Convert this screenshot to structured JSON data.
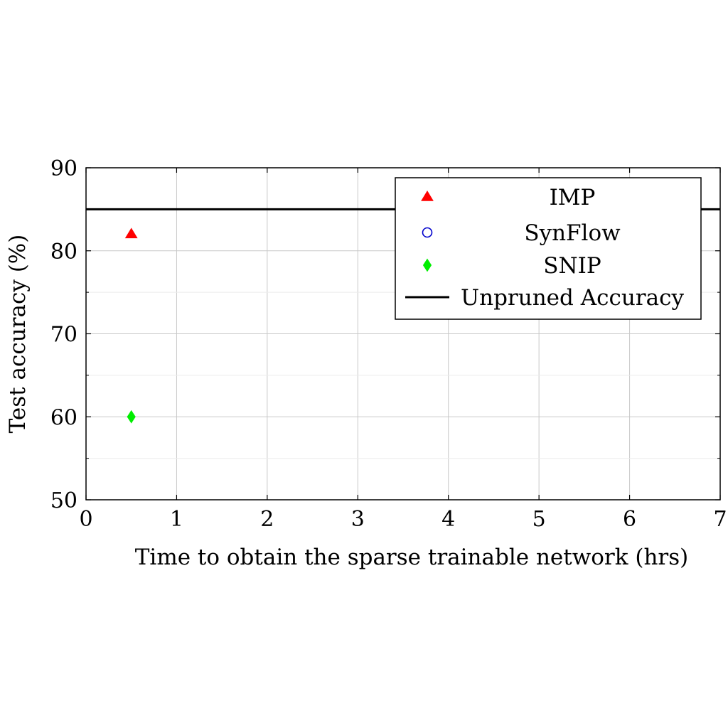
{
  "chart_data": {
    "type": "scatter",
    "xlabel": "Time to obtain the sparse trainable network (hrs)",
    "ylabel": "Test accuracy (%)",
    "xlim": [
      0,
      7
    ],
    "ylim": [
      50,
      90
    ],
    "x_ticks": [
      0,
      1,
      2,
      3,
      4,
      5,
      6,
      7
    ],
    "y_ticks": [
      50,
      60,
      70,
      80,
      90
    ],
    "y_minor_ticks": [
      55,
      65,
      75,
      85
    ],
    "grid": true,
    "legend_position": "top-right",
    "series": [
      {
        "name": "IMP",
        "marker": "triangle",
        "color": "#ff0000",
        "filled": true,
        "x": [
          0.5
        ],
        "y": [
          82
        ]
      },
      {
        "name": "SynFlow",
        "marker": "circle",
        "color": "#0000cc",
        "filled": false,
        "x": [],
        "y": []
      },
      {
        "name": "SNIP",
        "marker": "diamond",
        "color": "#00ee00",
        "filled": true,
        "x": [
          0.5
        ],
        "y": [
          60
        ]
      }
    ],
    "reference_line": {
      "name": "Unpruned Accuracy",
      "y": 85,
      "color": "#000000"
    }
  }
}
